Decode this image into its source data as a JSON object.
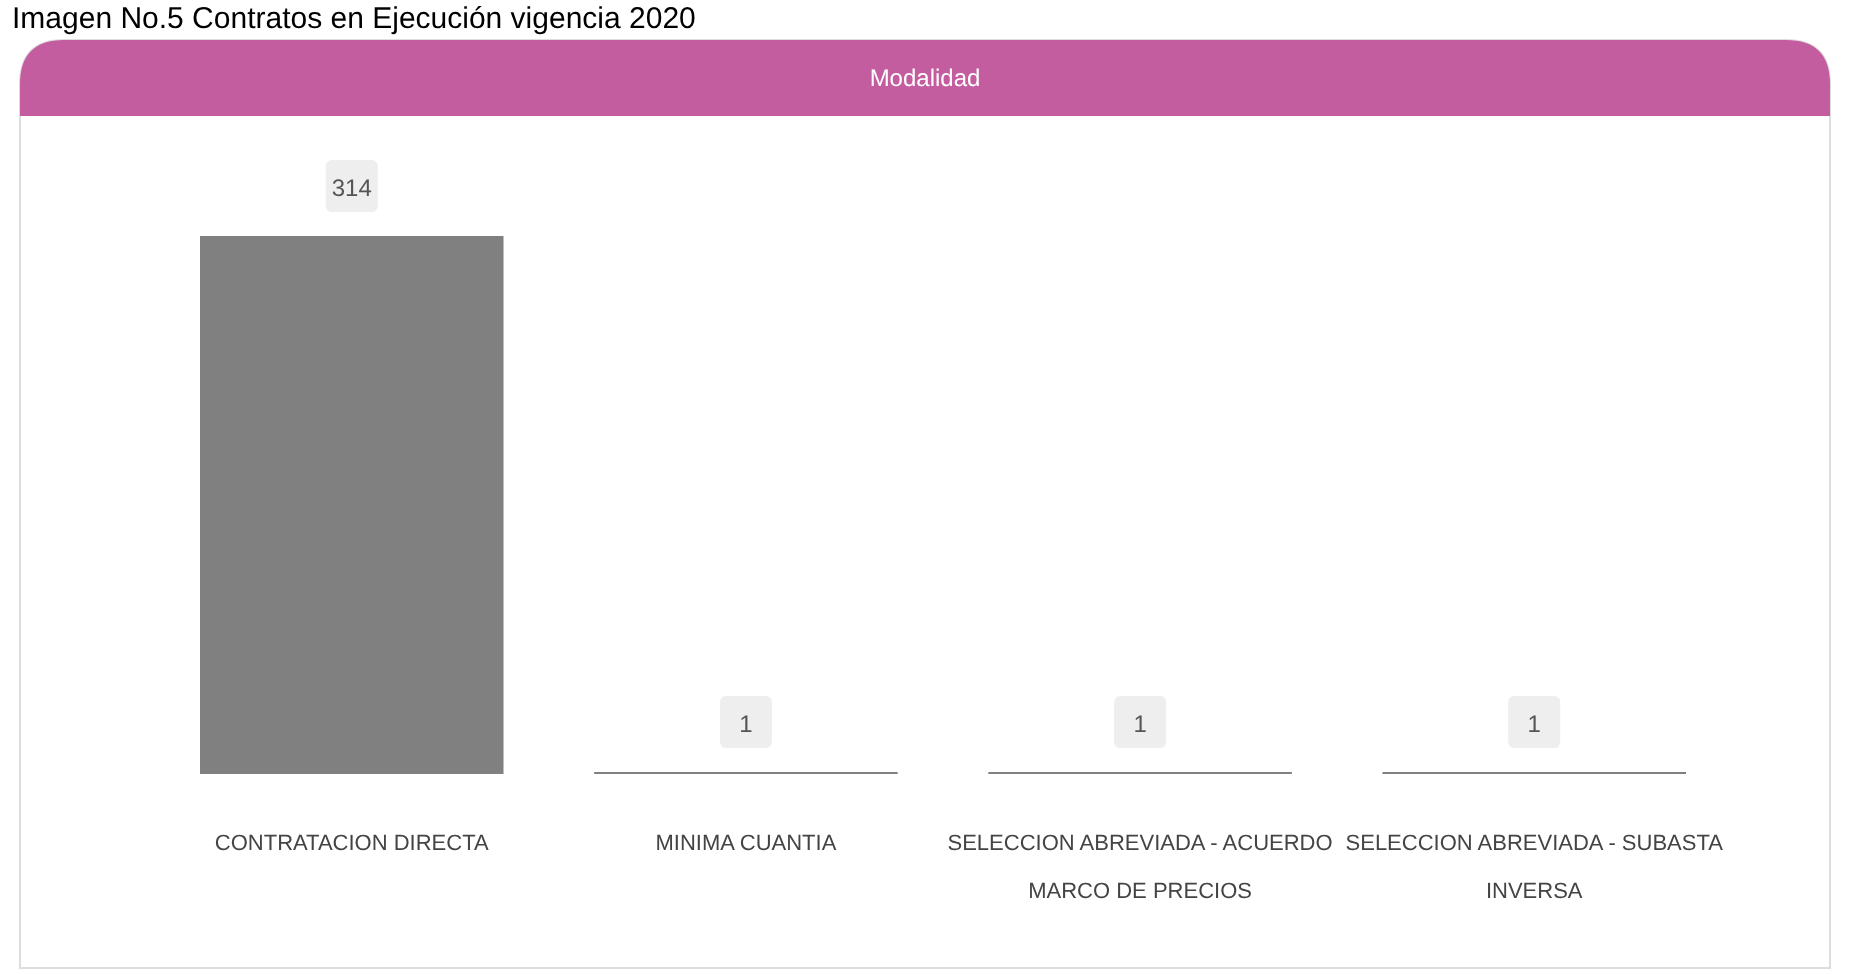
{
  "chart_data": {
    "type": "bar",
    "title": "Imagen No.5 Contratos en Ejecución vigencia 2020",
    "subtitle": "Modalidad",
    "categories": [
      "CONTRATACION DIRECTA",
      "MINIMA CUANTIA",
      "SELECCION ABREVIADA - ACUERDO MARCO DE PRECIOS",
      "SELECCION ABREVIADA - SUBASTA INVERSA"
    ],
    "values": [
      314,
      1,
      1,
      1
    ],
    "color": "#808080",
    "data_labels": true
  }
}
